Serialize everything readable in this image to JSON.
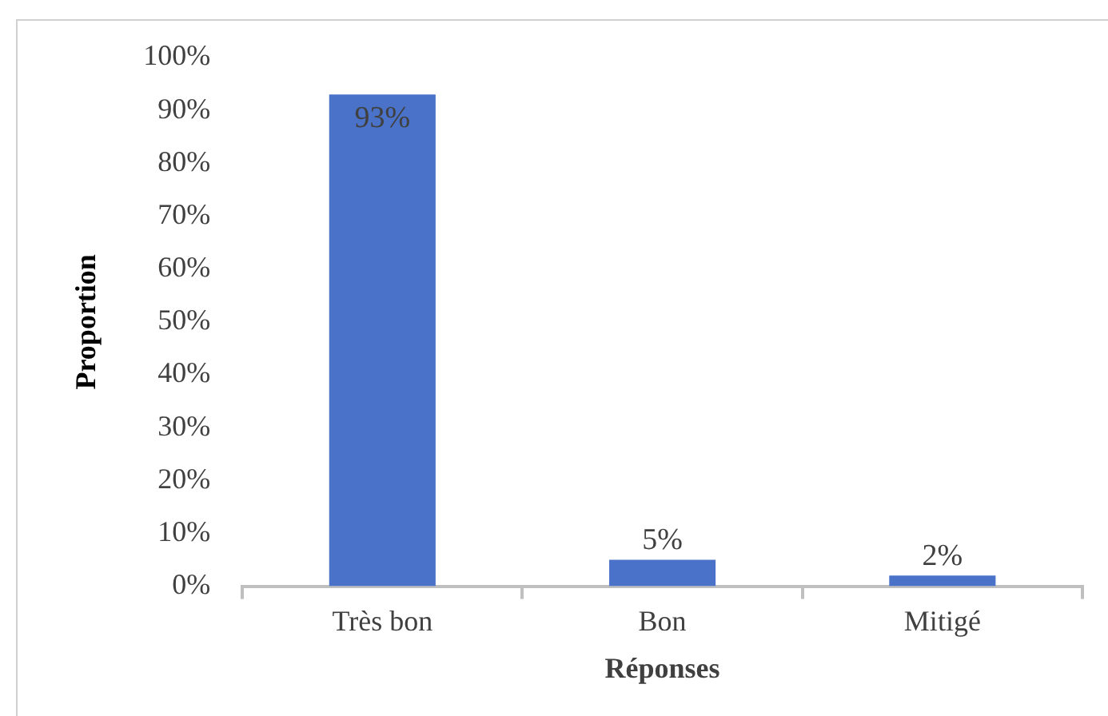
{
  "chart_data": {
    "type": "bar",
    "xlabel": "Réponses",
    "ylabel": "Proportion",
    "categories": [
      "Très bon",
      "Bon",
      "Mitigé"
    ],
    "values": [
      93,
      5,
      2
    ],
    "value_labels": [
      "93%",
      "5%",
      "2%"
    ],
    "color": "#4a72c8",
    "ylim": [
      0,
      100
    ],
    "yticks": [
      {
        "value": 0,
        "label": "0%"
      },
      {
        "value": 10,
        "label": "10%"
      },
      {
        "value": 20,
        "label": "20%"
      },
      {
        "value": 30,
        "label": "30%"
      },
      {
        "value": 40,
        "label": "40%"
      },
      {
        "value": 50,
        "label": "50%"
      },
      {
        "value": 60,
        "label": "60%"
      },
      {
        "value": 70,
        "label": "70%"
      },
      {
        "value": 80,
        "label": "80%"
      },
      {
        "value": 90,
        "label": "90%"
      },
      {
        "value": 100,
        "label": "100%"
      }
    ],
    "grid": false,
    "legend": false
  }
}
